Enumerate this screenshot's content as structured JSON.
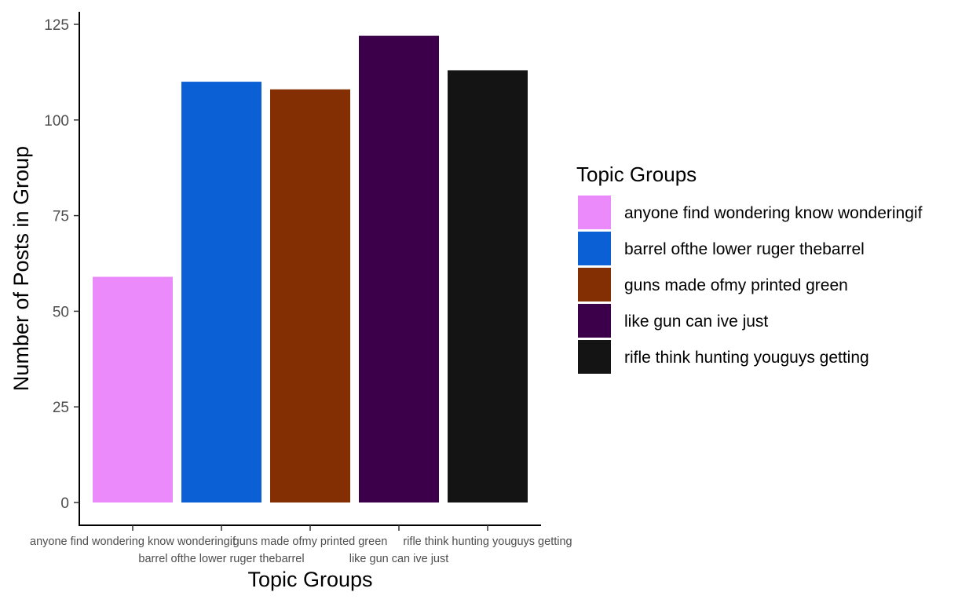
{
  "chart_data": {
    "type": "bar",
    "categories": [
      "anyone find wondering know wonderingif",
      "barrel ofthe lower ruger thebarrel",
      "guns made ofmy printed green",
      "like gun can ive just",
      "rifle think hunting youguys getting"
    ],
    "values": [
      59,
      110,
      108,
      122,
      113
    ],
    "colors": [
      "#EA8AFB",
      "#0B60D6",
      "#842E03",
      "#3B0049",
      "#141414"
    ],
    "xlabel": "Topic Groups",
    "ylabel": "Number of Posts in Group",
    "ylim": [
      0,
      125
    ],
    "yticks": [
      0,
      25,
      50,
      75,
      100,
      125
    ],
    "grid": false,
    "legend": {
      "title": "Topic Groups",
      "placement": "right"
    }
  }
}
